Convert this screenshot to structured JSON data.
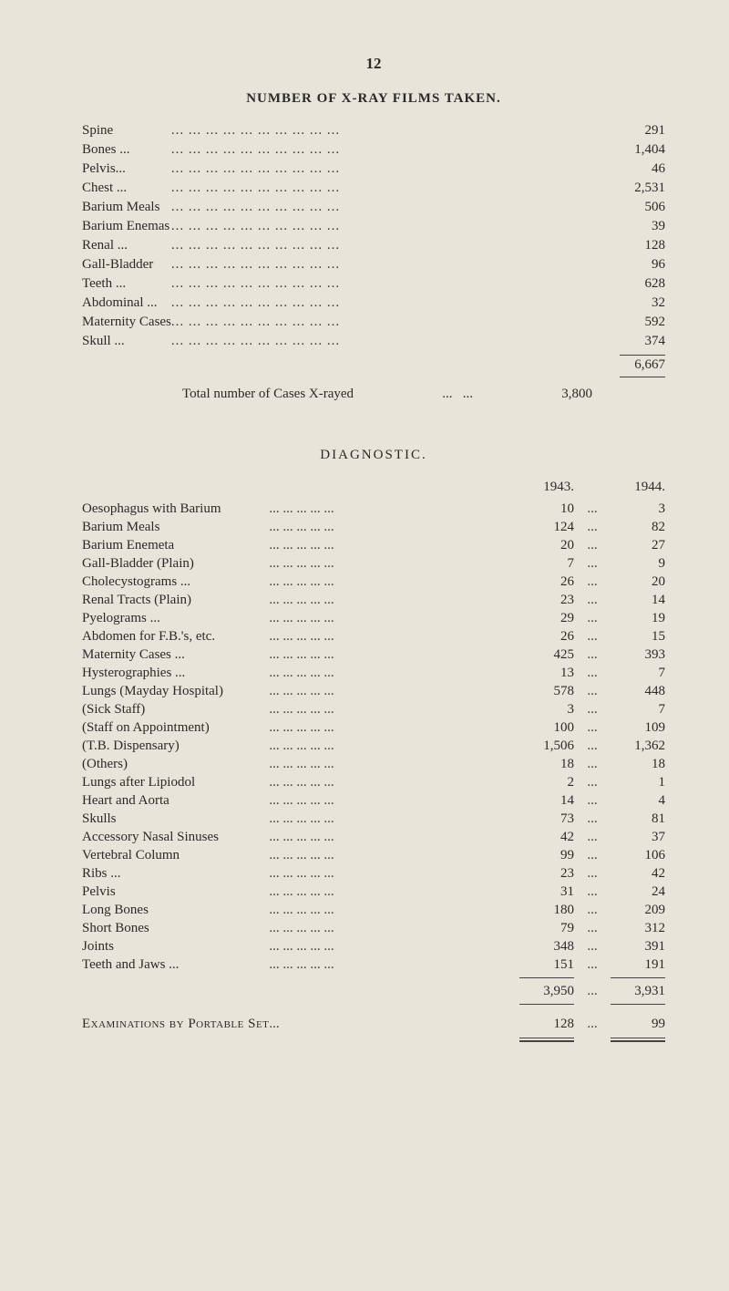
{
  "page_number": "12",
  "films": {
    "title": "NUMBER OF X-RAY FILMS TAKEN.",
    "rows": [
      {
        "label": "Spine",
        "value": "291"
      },
      {
        "label": "Bones ...",
        "value": "1,404"
      },
      {
        "label": "Pelvis...",
        "value": "46"
      },
      {
        "label": "Chest ...",
        "value": "2,531"
      },
      {
        "label": "Barium Meals",
        "value": "506"
      },
      {
        "label": "Barium Enemas",
        "value": "39"
      },
      {
        "label": "Renal ...",
        "value": "128"
      },
      {
        "label": "Gall-Bladder",
        "value": "96"
      },
      {
        "label": "Teeth ...",
        "value": "628"
      },
      {
        "label": "Abdominal ...",
        "value": "32"
      },
      {
        "label": "Maternity Cases",
        "value": "592"
      },
      {
        "label": "Skull ...",
        "value": "374"
      }
    ],
    "grand_total": "6,667",
    "total_line": {
      "label": "Total number of Cases X-rayed",
      "value": "3,800"
    }
  },
  "diagnostic": {
    "title": "DIAGNOSTIC.",
    "year_headers": {
      "col1": "1943.",
      "col2": "1944."
    },
    "rows": [
      {
        "label": "Oesophagus with Barium",
        "indent": 0,
        "v1": "10",
        "v2": "3"
      },
      {
        "label": "Barium Meals",
        "indent": 0,
        "v1": "124",
        "v2": "82"
      },
      {
        "label": "Barium Enemeta",
        "indent": 0,
        "v1": "20",
        "v2": "27"
      },
      {
        "label": "Gall-Bladder (Plain)",
        "indent": 0,
        "v1": "7",
        "v2": "9"
      },
      {
        "label": "Cholecystograms ...",
        "indent": 0,
        "v1": "26",
        "v2": "20"
      },
      {
        "label": "Renal Tracts (Plain)",
        "indent": 0,
        "v1": "23",
        "v2": "14"
      },
      {
        "label": "Pyelograms ...",
        "indent": 0,
        "v1": "29",
        "v2": "19"
      },
      {
        "label": "Abdomen for F.B.'s, etc.",
        "indent": 0,
        "v1": "26",
        "v2": "15"
      },
      {
        "label": "Maternity Cases ...",
        "indent": 0,
        "v1": "425",
        "v2": "393"
      },
      {
        "label": "Hysterographies ...",
        "indent": 0,
        "v1": "13",
        "v2": "7"
      },
      {
        "label": "Lungs (Mayday Hospital)",
        "indent": 0,
        "v1": "578",
        "v2": "448"
      },
      {
        "label": "(Sick Staff)",
        "indent": 1,
        "v1": "3",
        "v2": "7"
      },
      {
        "label": "(Staff on Appointment)",
        "indent": 1,
        "v1": "100",
        "v2": "109"
      },
      {
        "label": "(T.B. Dispensary)",
        "indent": 1,
        "v1": "1,506",
        "v2": "1,362"
      },
      {
        "label": "(Others)",
        "indent": 1,
        "v1": "18",
        "v2": "18"
      },
      {
        "label": "Lungs after Lipiodol",
        "indent": 0,
        "v1": "2",
        "v2": "1"
      },
      {
        "label": "Heart and Aorta",
        "indent": 0,
        "v1": "14",
        "v2": "4"
      },
      {
        "label": "Skulls",
        "indent": 0,
        "v1": "73",
        "v2": "81"
      },
      {
        "label": "Accessory Nasal Sinuses",
        "indent": 0,
        "v1": "42",
        "v2": "37"
      },
      {
        "label": "Vertebral Column",
        "indent": 0,
        "v1": "99",
        "v2": "106"
      },
      {
        "label": "Ribs ...",
        "indent": 0,
        "v1": "23",
        "v2": "42"
      },
      {
        "label": "Pelvis",
        "indent": 0,
        "v1": "31",
        "v2": "24"
      },
      {
        "label": "Long Bones",
        "indent": 0,
        "v1": "180",
        "v2": "209"
      },
      {
        "label": "Short Bones",
        "indent": 0,
        "v1": "79",
        "v2": "312"
      },
      {
        "label": "Joints",
        "indent": 0,
        "v1": "348",
        "v2": "391"
      },
      {
        "label": "Teeth and Jaws ...",
        "indent": 0,
        "v1": "151",
        "v2": "191"
      }
    ],
    "totals": {
      "v1": "3,950",
      "v2": "3,931"
    },
    "exam_row": {
      "label": "Examinations by Portable Set",
      "v1": "128",
      "v2": "99"
    }
  },
  "style": {
    "background_color": "#e8e4da",
    "text_color": "#2a2a2a",
    "font_family": "Times New Roman",
    "body_fontsize": 15
  }
}
